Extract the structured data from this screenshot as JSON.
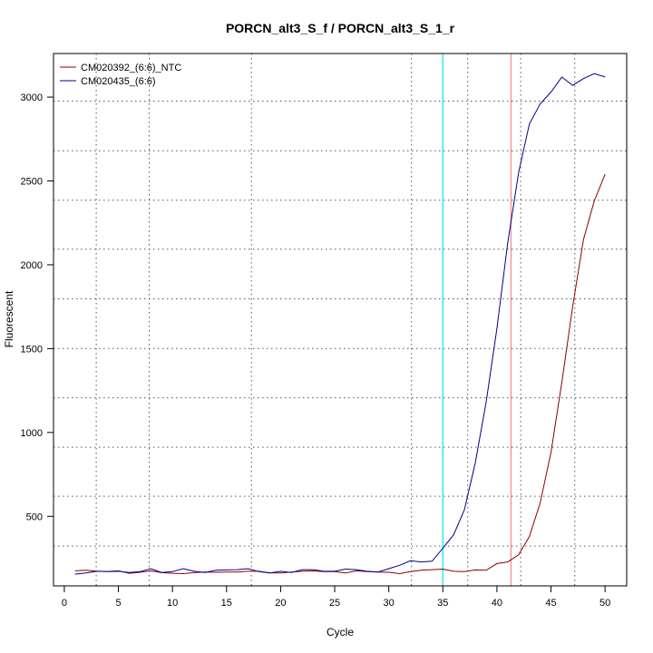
{
  "chart_data": {
    "type": "line",
    "title": "PORCN_alt3_S_f / PORCN_alt3_S_1_r",
    "xlabel": "Cycle",
    "ylabel": "Fluorescent",
    "xlim": [
      -1.0,
      52.0
    ],
    "ylim": [
      85,
      3260
    ],
    "x_ticks": [
      0,
      5,
      10,
      15,
      20,
      25,
      30,
      35,
      40,
      45,
      50
    ],
    "y_ticks": [
      500,
      1000,
      1500,
      2000,
      2500,
      3000
    ],
    "grid": true,
    "grid_x": [
      2.95,
      7.85,
      17.3,
      32.1,
      37.3,
      42.2,
      47.2
    ],
    "grid_y": [
      322,
      620,
      912,
      1207,
      1501,
      1797,
      2093,
      2385,
      2680,
      2976
    ],
    "legend_position": "top-left",
    "threshold_lines": [
      {
        "x": 35.0,
        "color": "#66e8ee"
      },
      {
        "x": 41.3,
        "color": "#f08a8a"
      }
    ],
    "x": [
      1,
      2,
      3,
      4,
      5,
      6,
      7,
      8,
      9,
      10,
      11,
      12,
      13,
      14,
      15,
      16,
      17,
      18,
      19,
      20,
      21,
      22,
      23,
      24,
      25,
      26,
      27,
      28,
      29,
      30,
      31,
      32,
      33,
      34,
      35,
      36,
      37,
      38,
      39,
      40,
      41,
      42,
      43,
      44,
      45,
      46,
      47,
      48,
      49,
      50
    ],
    "series": [
      {
        "name": "CM020392_(6:6)_NTC",
        "color": "#8b0000",
        "values": [
          175,
          178,
          173,
          171,
          175,
          160,
          166,
          175,
          164,
          160,
          158,
          164,
          168,
          166,
          168,
          167,
          172,
          172,
          163,
          162,
          168,
          172,
          174,
          170,
          170,
          162,
          175,
          170,
          168,
          166,
          158,
          170,
          178,
          182,
          185,
          172,
          170,
          180,
          178,
          218,
          228,
          270,
          380,
          580,
          880,
          1300,
          1750,
          2150,
          2380,
          2540
        ]
      },
      {
        "name": "CM020435_(6:6)",
        "color": "#00008b",
        "values": [
          155,
          162,
          172,
          170,
          172,
          165,
          170,
          188,
          165,
          170,
          188,
          172,
          165,
          178,
          180,
          182,
          188,
          170,
          162,
          172,
          165,
          182,
          182,
          172,
          172,
          185,
          182,
          172,
          168,
          188,
          208,
          235,
          228,
          232,
          310,
          390,
          540,
          820,
          1180,
          1620,
          2130,
          2550,
          2840,
          2960,
          3030,
          3120,
          3070,
          3110,
          3140,
          3120
        ]
      }
    ]
  }
}
